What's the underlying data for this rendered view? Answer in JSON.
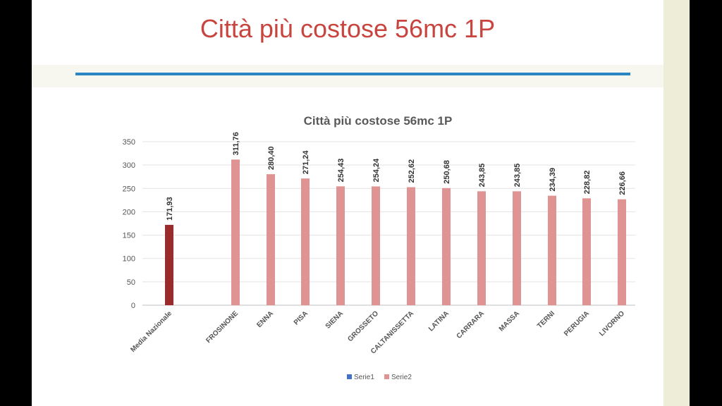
{
  "slide": {
    "title": "Città più costose 56mc 1P"
  },
  "colors": {
    "background": "#000000",
    "title": "#c8453f",
    "rule": "#2a86c3",
    "national_bar": "#9b2a2a",
    "city_bar": "#e09393",
    "series1": "#4472c4"
  },
  "chart_data": {
    "type": "bar",
    "title": "Città più costose 56mc 1P",
    "xlabel": "",
    "ylabel": "",
    "ylim": [
      0,
      350
    ],
    "yticks": [
      0,
      50,
      100,
      150,
      200,
      250,
      300,
      350
    ],
    "grid": true,
    "legend_position": "bottom",
    "categories": [
      "Media Nazionale",
      "FROSINONE",
      "ENNA",
      "PISA",
      "SIENA",
      "GROSSETO",
      "CALTANISSETTA",
      "LATINA",
      "CARRARA",
      "MASSA",
      "TERNI",
      "PERUGIA",
      "LIVORNO"
    ],
    "values": [
      171.93,
      311.76,
      280.4,
      271.24,
      254.43,
      254.24,
      252.62,
      250.68,
      243.85,
      243.85,
      234.39,
      228.82,
      226.66
    ],
    "value_labels": [
      "171,93",
      "311,76",
      "280,40",
      "271,24",
      "254,43",
      "254,24",
      "252,62",
      "250,68",
      "243,85",
      "243,85",
      "234,39",
      "228,82",
      "226,66"
    ],
    "series": [
      {
        "name": "Serie1",
        "color": "#4472c4"
      },
      {
        "name": "Serie2",
        "color": "#e09393"
      }
    ]
  }
}
